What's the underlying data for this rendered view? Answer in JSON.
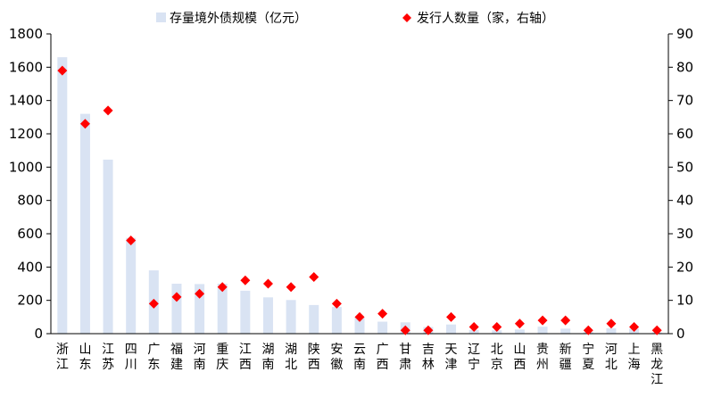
{
  "chart_data": {
    "type": "bar",
    "categories": [
      "浙江",
      "山东",
      "江苏",
      "四川",
      "广东",
      "福建",
      "河南",
      "重庆",
      "江西",
      "湖南",
      "湖北",
      "陕西",
      "安徽",
      "云南",
      "广西",
      "甘肃",
      "吉林",
      "天津",
      "辽宁",
      "北京",
      "山西",
      "贵州",
      "新疆",
      "宁夏",
      "河北",
      "上海",
      "黑龙江"
    ],
    "series": [
      {
        "name": "存量境外债规模（亿元）",
        "type": "bar",
        "axis": "left",
        "color": "#d9e3f3",
        "values": [
          1660,
          1320,
          1045,
          575,
          380,
          300,
          298,
          300,
          258,
          218,
          202,
          172,
          160,
          98,
          72,
          68,
          40,
          55,
          22,
          20,
          25,
          42,
          30,
          10,
          32,
          30,
          8
        ]
      },
      {
        "name": "发行人数量（家，右轴）",
        "type": "scatter",
        "axis": "right",
        "color": "#ff0000",
        "values": [
          79,
          63,
          67,
          28,
          9,
          11,
          12,
          14,
          16,
          15,
          14,
          17,
          9,
          5,
          6,
          1,
          1,
          5,
          2,
          2,
          3,
          4,
          4,
          1,
          3,
          2,
          1
        ]
      }
    ],
    "ylim": [
      0,
      1800
    ],
    "y_ticks": [
      0,
      200,
      400,
      600,
      800,
      1000,
      1200,
      1400,
      1600,
      1800
    ],
    "y2lim": [
      0,
      90
    ],
    "y2_ticks": [
      0,
      10,
      20,
      30,
      40,
      50,
      60,
      70,
      80,
      90
    ],
    "legend_position": "top",
    "grid": false
  }
}
